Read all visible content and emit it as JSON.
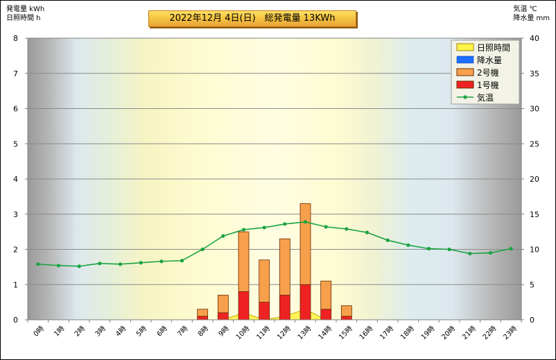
{
  "header": {
    "left_line1": "発電量 kWh",
    "left_line2": "日照時間 h",
    "right_line1": "気温  ℃",
    "right_line2": "降水量 mm",
    "title": "2022年12月 4日(日)　総発電量 13KWh"
  },
  "colors": {
    "unit1": "#ee2222",
    "unit2": "#f7a04b",
    "sunshine": "#fff34a",
    "rain": "#1c6fff",
    "temperature": "#1aa341"
  },
  "chart_data": {
    "type": "bar",
    "stacked": true,
    "categories": [
      "0時",
      "1時",
      "2時",
      "3時",
      "4時",
      "5時",
      "6時",
      "7時",
      "8時",
      "9時",
      "10時",
      "11時",
      "12時",
      "13時",
      "14時",
      "15時",
      "16時",
      "17時",
      "18時",
      "19時",
      "20時",
      "21時",
      "22時",
      "23時"
    ],
    "y_left_ticks": [
      "0",
      "1",
      "2",
      "3",
      "4",
      "5",
      "6",
      "7",
      "8"
    ],
    "y_right_ticks": [
      "0",
      "5",
      "10",
      "15",
      "20",
      "25",
      "30",
      "35",
      "40"
    ],
    "ylim_left": [
      0,
      8
    ],
    "ylim_right": [
      0,
      40
    ],
    "grid": true,
    "legend_position": "top-right",
    "series": [
      {
        "name": "日照時間",
        "kind": "area",
        "axis": "left",
        "values": [
          0,
          0,
          0,
          0,
          0,
          0,
          0,
          0,
          0,
          0,
          0.2,
          0,
          0.1,
          0.3,
          0,
          0,
          0,
          0,
          0,
          0,
          0,
          0,
          0,
          0
        ]
      },
      {
        "name": "降水量",
        "kind": "bar",
        "axis": "right",
        "values": [
          0,
          0,
          0,
          0,
          0,
          0,
          0,
          0,
          0,
          0,
          0,
          0,
          0,
          0,
          0,
          0,
          0,
          0,
          0,
          0,
          0,
          0,
          0,
          0
        ]
      },
      {
        "name": "2号機",
        "kind": "bar",
        "axis": "left",
        "values": [
          0,
          0,
          0,
          0,
          0,
          0,
          0,
          0,
          0.2,
          0.5,
          1.7,
          1.2,
          1.6,
          2.3,
          0.8,
          0.3,
          0,
          0,
          0,
          0,
          0,
          0,
          0,
          0
        ]
      },
      {
        "name": "1号機",
        "kind": "bar",
        "axis": "left",
        "values": [
          0,
          0,
          0,
          0,
          0,
          0,
          0,
          0,
          0.1,
          0.2,
          0.8,
          0.5,
          0.7,
          1.0,
          0.3,
          0.1,
          0,
          0,
          0,
          0,
          0,
          0,
          0,
          0
        ]
      },
      {
        "name": "気温",
        "kind": "line",
        "axis": "right",
        "values": [
          7.9,
          7.7,
          7.6,
          8.0,
          7.9,
          8.1,
          8.3,
          8.4,
          10.0,
          11.9,
          12.8,
          13.1,
          13.6,
          13.9,
          13.2,
          12.9,
          12.4,
          11.3,
          10.6,
          10.1,
          10.0,
          9.4,
          9.5,
          10.1
        ]
      }
    ]
  }
}
